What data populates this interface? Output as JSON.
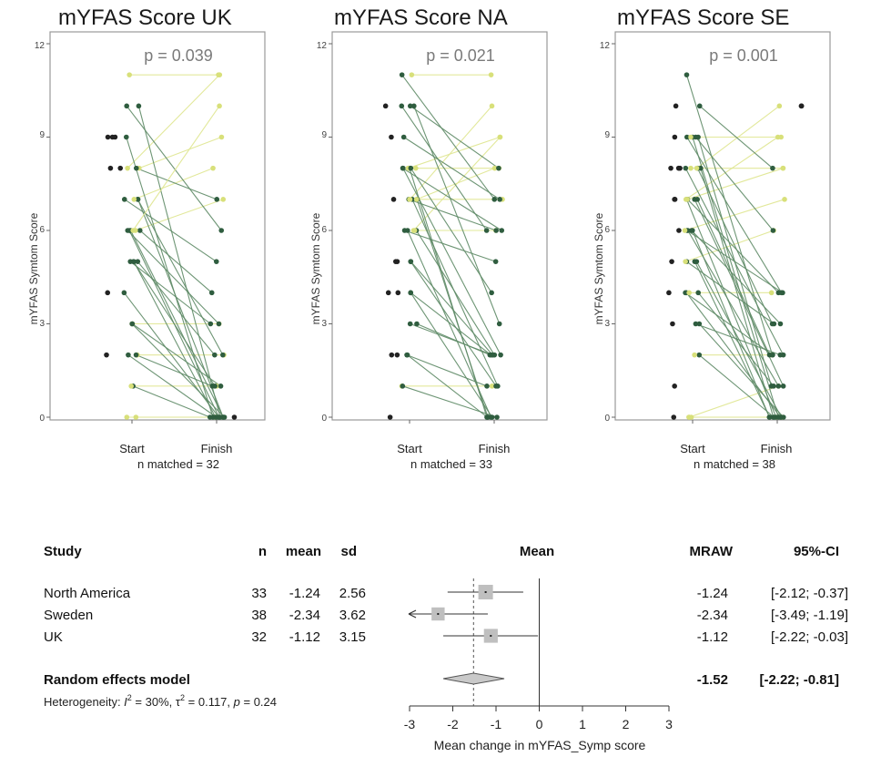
{
  "chart_data": [
    {
      "type": "scatter",
      "title": "mYFAS Score UK",
      "p_value": "p = 0.039",
      "ylabel": "mYFAS Symtom Score",
      "x_categories": [
        "Start",
        "Finish"
      ],
      "n_label": "n matched = 32",
      "ylim": [
        0,
        12
      ],
      "y_ticks": [
        "0",
        "3",
        "6",
        "9",
        "12"
      ],
      "pairs": [
        [
          0,
          0
        ],
        [
          0,
          0
        ],
        [
          1,
          0
        ],
        [
          1,
          1
        ],
        [
          2,
          0
        ],
        [
          2,
          2
        ],
        [
          2,
          1
        ],
        [
          3,
          0
        ],
        [
          3,
          3
        ],
        [
          3,
          1
        ],
        [
          4,
          0
        ],
        [
          5,
          1
        ],
        [
          5,
          0
        ],
        [
          5,
          3
        ],
        [
          5,
          2
        ],
        [
          6,
          0
        ],
        [
          6,
          0
        ],
        [
          6,
          3
        ],
        [
          6,
          4
        ],
        [
          6,
          7
        ],
        [
          7,
          0
        ],
        [
          7,
          2
        ],
        [
          7,
          5
        ],
        [
          7,
          8
        ],
        [
          8,
          9
        ],
        [
          8,
          11
        ],
        [
          8,
          7
        ],
        [
          9,
          0
        ],
        [
          10,
          0
        ],
        [
          10,
          6
        ],
        [
          11,
          11
        ],
        [
          6,
          10
        ]
      ],
      "unmatched_start": [
        9,
        9,
        9,
        8,
        8,
        4,
        2
      ],
      "unmatched_finish": [
        0
      ]
    },
    {
      "type": "scatter",
      "title": "mYFAS Score NA",
      "p_value": "p = 0.021",
      "ylabel": "mYFAS Symtom Score",
      "x_categories": [
        "Start",
        "Finish"
      ],
      "n_label": "n matched = 33",
      "ylim": [
        0,
        12
      ],
      "y_ticks": [
        "0",
        "3",
        "6",
        "9",
        "12"
      ],
      "pairs": [
        [
          1,
          1
        ],
        [
          1,
          0
        ],
        [
          2,
          0
        ],
        [
          2,
          1
        ],
        [
          3,
          2
        ],
        [
          3,
          2
        ],
        [
          4,
          2
        ],
        [
          4,
          0
        ],
        [
          5,
          2
        ],
        [
          5,
          1
        ],
        [
          6,
          0
        ],
        [
          6,
          2
        ],
        [
          6,
          6
        ],
        [
          6,
          5
        ],
        [
          6,
          9
        ],
        [
          7,
          1
        ],
        [
          7,
          0
        ],
        [
          7,
          6
        ],
        [
          7,
          8
        ],
        [
          7,
          7
        ],
        [
          7,
          10
        ],
        [
          8,
          0
        ],
        [
          8,
          2
        ],
        [
          8,
          6
        ],
        [
          8,
          9
        ],
        [
          8,
          8
        ],
        [
          8,
          4
        ],
        [
          9,
          7
        ],
        [
          10,
          8
        ],
        [
          10,
          3
        ],
        [
          10,
          6
        ],
        [
          11,
          11
        ],
        [
          11,
          7
        ]
      ],
      "unmatched_start": [
        10,
        9,
        7,
        5,
        5,
        4,
        4,
        2,
        2,
        0
      ],
      "unmatched_finish": []
    },
    {
      "type": "scatter",
      "title": "mYFAS Score SE",
      "p_value": "p = 0.001",
      "ylabel": "mYFAS Symtom Score",
      "x_categories": [
        "Start",
        "Finish"
      ],
      "n_label": "n matched = 38",
      "ylim": [
        0,
        12
      ],
      "y_ticks": [
        "0",
        "3",
        "6",
        "9",
        "12"
      ],
      "pairs": [
        [
          0,
          0
        ],
        [
          0,
          0
        ],
        [
          0,
          1
        ],
        [
          2,
          0
        ],
        [
          2,
          2
        ],
        [
          3,
          0
        ],
        [
          3,
          2
        ],
        [
          4,
          0
        ],
        [
          4,
          1
        ],
        [
          4,
          2
        ],
        [
          4,
          4
        ],
        [
          5,
          0
        ],
        [
          5,
          0
        ],
        [
          5,
          3
        ],
        [
          5,
          6
        ],
        [
          6,
          1
        ],
        [
          6,
          0
        ],
        [
          6,
          3
        ],
        [
          6,
          4
        ],
        [
          6,
          7
        ],
        [
          7,
          0
        ],
        [
          7,
          1
        ],
        [
          7,
          2
        ],
        [
          7,
          4
        ],
        [
          7,
          8
        ],
        [
          7,
          9
        ],
        [
          8,
          0
        ],
        [
          8,
          2
        ],
        [
          8,
          3
        ],
        [
          8,
          8
        ],
        [
          8,
          10
        ],
        [
          9,
          1
        ],
        [
          9,
          0
        ],
        [
          9,
          4
        ],
        [
          9,
          9
        ],
        [
          9,
          6
        ],
        [
          10,
          8
        ],
        [
          11,
          2
        ]
      ],
      "unmatched_start": [
        10,
        9,
        8,
        8,
        8,
        7,
        7,
        6,
        5,
        4,
        3,
        1,
        0
      ],
      "unmatched_finish": [
        10,
        10
      ]
    }
  ],
  "forest": {
    "headers": {
      "study": "Study",
      "n": "n",
      "mean": "mean",
      "sd": "sd",
      "plot": "Mean",
      "mraw": "MRAW",
      "ci": "95%-CI"
    },
    "rows": [
      {
        "study": "North America",
        "n": "33",
        "mean": "-1.24",
        "sd": "2.56",
        "mraw": "-1.24",
        "ci": "[-2.12; -0.37]",
        "est": -1.24,
        "lo": -2.12,
        "hi": -0.37,
        "weight": 1.0
      },
      {
        "study": "Sweden",
        "n": "38",
        "mean": "-2.34",
        "sd": "3.62",
        "mraw": "-2.34",
        "ci": "[-3.49; -1.19]",
        "est": -2.34,
        "lo": -3.49,
        "hi": -1.19,
        "weight": 0.9
      },
      {
        "study": "UK",
        "n": "32",
        "mean": "-1.12",
        "sd": "3.15",
        "mraw": "-1.12",
        "ci": "[-2.22; -0.03]",
        "est": -1.12,
        "lo": -2.22,
        "hi": -0.03,
        "weight": 0.95
      }
    ],
    "model": {
      "label": "Random effects model",
      "mraw": "-1.52",
      "ci": "[-2.22; -0.81]",
      "est": -1.52,
      "lo": -2.22,
      "hi": -0.81
    },
    "heterogeneity": {
      "prefix": "Heterogeneity: ",
      "i2_symbol": "I",
      "i2_exp": "2",
      "i2_value": " = 30%, ",
      "tau_symbol": "τ",
      "tau_exp": "2",
      "tau_value": " = 0.117, ",
      "p_symbol": "p",
      "p_value": " = 0.24"
    },
    "axis": {
      "ticks": [
        "-3",
        "-2",
        "-1",
        "0",
        "1",
        "2",
        "3"
      ],
      "label": "Mean change in mYFAS_Symp score",
      "xlim": [
        -3,
        3
      ]
    },
    "colors": {
      "box": "#bfbfbf",
      "diamond": "#c9c9c9",
      "line": "#333333"
    }
  },
  "colors": {
    "dark_green": "#2f5d3f",
    "light_green": "#d8e07a",
    "line_green": "#5e8a66",
    "line_yellow": "#dfe690",
    "dot_dark": "#222222"
  }
}
